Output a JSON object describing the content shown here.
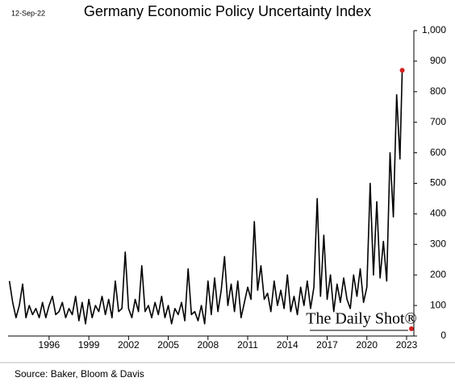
{
  "chart_data": {
    "type": "line",
    "title": "Germany Economic Policy Uncertainty Index",
    "date": "12-Sep-22",
    "source": "Source: Baker, Bloom & Davis",
    "watermark": "The Daily Shot®",
    "x": [
      1993,
      1993.25,
      1993.5,
      1993.75,
      1994,
      1994.25,
      1994.5,
      1994.75,
      1995,
      1995.25,
      1995.5,
      1995.75,
      1996,
      1996.25,
      1996.5,
      1996.75,
      1997,
      1997.25,
      1997.5,
      1997.75,
      1998,
      1998.25,
      1998.5,
      1998.75,
      1999,
      1999.25,
      1999.5,
      1999.75,
      2000,
      2000.25,
      2000.5,
      2000.75,
      2001,
      2001.25,
      2001.5,
      2001.75,
      2002,
      2002.25,
      2002.5,
      2002.75,
      2003,
      2003.25,
      2003.5,
      2003.75,
      2004,
      2004.25,
      2004.5,
      2004.75,
      2005,
      2005.25,
      2005.5,
      2005.75,
      2006,
      2006.25,
      2006.5,
      2006.75,
      2007,
      2007.25,
      2007.5,
      2007.75,
      2008,
      2008.25,
      2008.5,
      2008.75,
      2009,
      2009.25,
      2009.5,
      2009.75,
      2010,
      2010.25,
      2010.5,
      2010.75,
      2011,
      2011.25,
      2011.5,
      2011.75,
      2012,
      2012.25,
      2012.5,
      2012.75,
      2013,
      2013.25,
      2013.5,
      2013.75,
      2014,
      2014.25,
      2014.5,
      2014.75,
      2015,
      2015.25,
      2015.5,
      2015.75,
      2016,
      2016.25,
      2016.5,
      2016.75,
      2017,
      2017.25,
      2017.5,
      2017.75,
      2018,
      2018.25,
      2018.5,
      2018.75,
      2019,
      2019.25,
      2019.5,
      2019.75,
      2020,
      2020.25,
      2020.5,
      2020.75,
      2021,
      2021.25,
      2021.5,
      2021.75,
      2022,
      2022.25,
      2022.5,
      2022.67
    ],
    "series": [
      {
        "color": "#000000",
        "end_marker_color": "#d42020",
        "values": [
          180,
          110,
          60,
          100,
          170,
          60,
          100,
          70,
          90,
          60,
          110,
          60,
          100,
          130,
          70,
          80,
          110,
          60,
          90,
          70,
          130,
          50,
          110,
          40,
          120,
          60,
          100,
          80,
          130,
          70,
          120,
          60,
          180,
          80,
          90,
          275,
          90,
          60,
          120,
          80,
          230,
          80,
          100,
          60,
          110,
          70,
          130,
          60,
          100,
          40,
          90,
          70,
          110,
          50,
          220,
          70,
          80,
          50,
          100,
          40,
          180,
          70,
          190,
          80,
          150,
          260,
          100,
          170,
          80,
          180,
          60,
          110,
          160,
          120,
          375,
          150,
          230,
          120,
          140,
          80,
          180,
          100,
          150,
          90,
          200,
          80,
          130,
          70,
          160,
          100,
          180,
          90,
          160,
          450,
          130,
          330,
          120,
          200,
          80,
          170,
          110,
          190,
          120,
          90,
          200,
          130,
          220,
          110,
          160,
          500,
          200,
          440,
          190,
          310,
          180,
          600,
          390,
          790,
          580,
          870
        ]
      }
    ],
    "xlim": [
      1992.9,
      2023.55
    ],
    "ylim": [
      0,
      1000
    ],
    "xticks": [
      1996,
      1999,
      2002,
      2005,
      2008,
      2011,
      2014,
      2017,
      2020,
      2023
    ],
    "yticks": [
      0,
      100,
      200,
      300,
      400,
      500,
      600,
      700,
      800,
      900,
      {
        "value": 1000,
        "label": "1,000"
      }
    ]
  }
}
